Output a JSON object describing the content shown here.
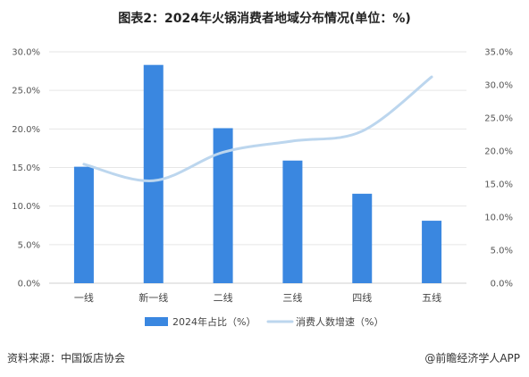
{
  "title": "图表2：2024年火锅消费者地域分布情况(单位：%)",
  "source": "资料来源：中国饭店协会",
  "brand": "@前瞻经济学人APP",
  "colors": {
    "bar": "#3a87e0",
    "line": "#bcd6ee",
    "grid": "#e6e6e6"
  },
  "chart_data": {
    "type": "bar",
    "categories": [
      "一线",
      "新一线",
      "二线",
      "三线",
      "四线",
      "五线"
    ],
    "series": [
      {
        "name": "2024年占比（%）",
        "type": "bar",
        "axis": "left",
        "values": [
          15.1,
          28.3,
          20.1,
          15.9,
          11.6,
          8.1
        ]
      },
      {
        "name": "消费人数增速（%）",
        "type": "line",
        "axis": "right",
        "values": [
          18.0,
          15.5,
          19.8,
          21.5,
          23.0,
          31.2
        ]
      }
    ],
    "y_left": {
      "min": 0,
      "max": 30,
      "step": 5,
      "tick_labels": [
        "0.0%",
        "5.0%",
        "10.0%",
        "15.0%",
        "20.0%",
        "25.0%",
        "30.0%"
      ]
    },
    "y_right": {
      "min": 0,
      "max": 35,
      "step": 5,
      "tick_labels": [
        "0.0%",
        "5.0%",
        "10.0%",
        "15.0%",
        "20.0%",
        "25.0%",
        "30.0%",
        "35.0%"
      ]
    },
    "legend_position": "bottom"
  }
}
